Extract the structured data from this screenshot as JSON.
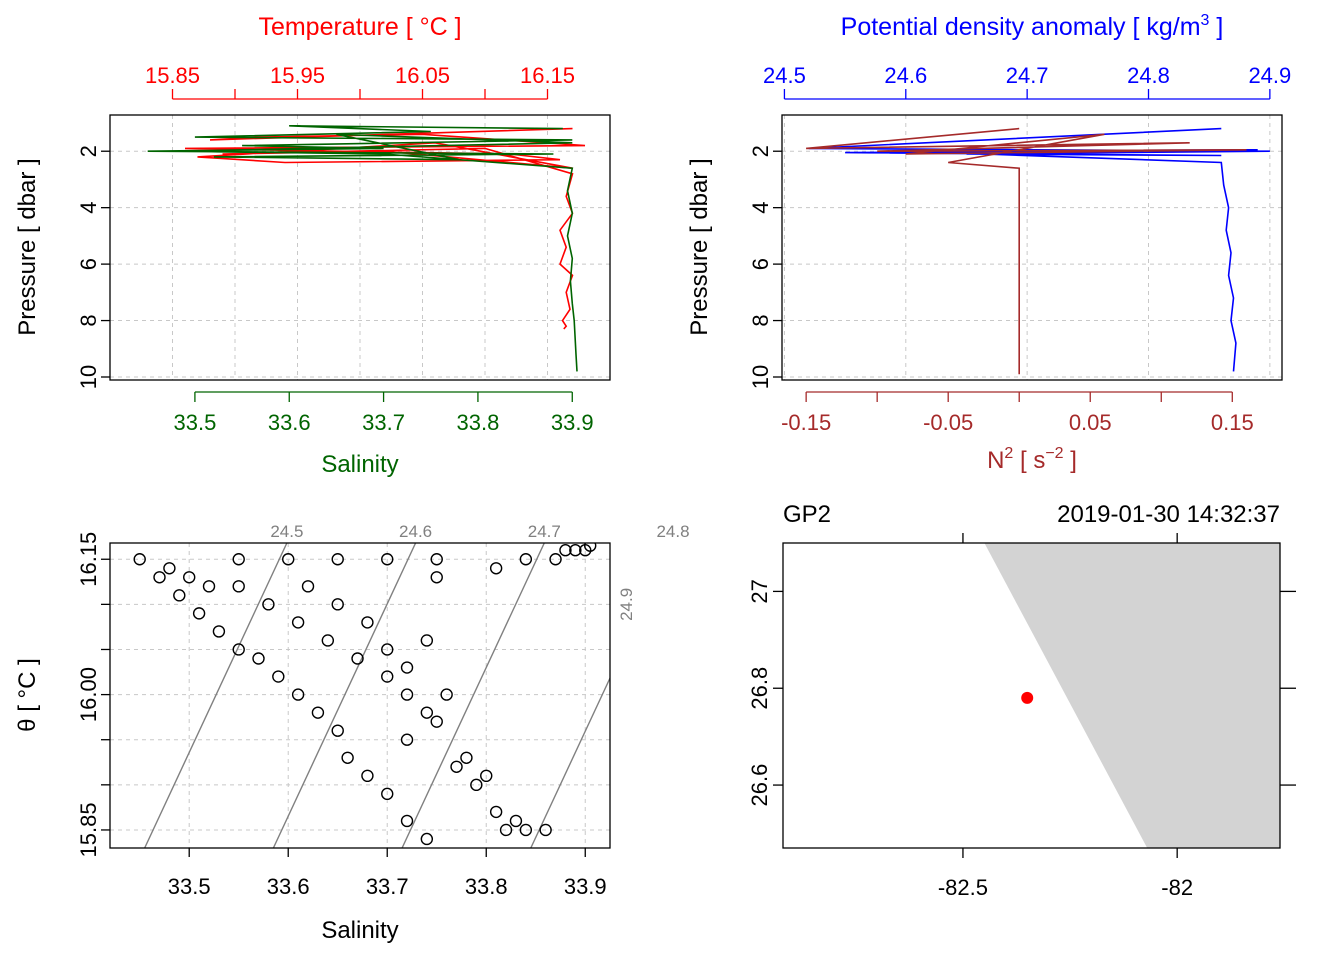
{
  "chart_data": [
    {
      "type": "line",
      "panel": "temperature-salinity-profile",
      "top_axis": {
        "label": "Temperature [ °C ]",
        "ticks": [
          "15.85",
          "15.95",
          "16.05",
          "16.15"
        ],
        "range": [
          15.8,
          16.2
        ],
        "color": "#ff0000"
      },
      "bottom_axis": {
        "label": "Salinity",
        "ticks": [
          "33.5",
          "33.6",
          "33.7",
          "33.8",
          "33.9"
        ],
        "range": [
          33.41,
          33.94
        ],
        "color": "#006400"
      },
      "ylabel": "Pressure [ dbar ]",
      "yticks": [
        "2",
        "4",
        "6",
        "8",
        "10"
      ],
      "ylim": [
        10,
        1
      ],
      "grid": true,
      "series": [
        {
          "color": "#ff0000",
          "x": [
            16.17,
            15.88,
            15.92,
            16.05,
            16.18,
            15.86,
            15.98,
            16.12,
            16.16,
            15.94,
            15.87,
            16.06,
            16.17,
            16.02,
            15.89,
            16.1,
            16.17,
            16.165,
            16.17,
            16.16,
            16.165,
            16.16,
            16.17,
            16.165,
            16.168,
            16.162,
            16.165,
            16.163
          ],
          "y": [
            1.2,
            1.6,
            1.5,
            1.4,
            1.8,
            1.9,
            2.0,
            2.1,
            2.3,
            2.4,
            2.2,
            1.7,
            2.6,
            2.0,
            2.1,
            1.9,
            2.8,
            3.6,
            4.2,
            4.8,
            5.4,
            6.0,
            6.4,
            7.0,
            7.6,
            8.0,
            8.2,
            8.3
          ]
        },
        {
          "color": "#006400",
          "x": [
            33.89,
            33.6,
            33.75,
            33.5,
            33.9,
            33.55,
            33.7,
            33.45,
            33.88,
            33.52,
            33.78,
            33.65,
            33.9,
            33.48,
            33.7,
            33.9,
            33.895,
            33.9,
            33.895,
            33.9,
            33.898,
            33.9,
            33.902,
            33.903,
            33.904,
            33.905
          ],
          "y": [
            1.2,
            1.1,
            1.3,
            1.5,
            1.6,
            1.8,
            1.9,
            2.0,
            2.1,
            2.2,
            2.3,
            1.4,
            1.7,
            2.0,
            2.1,
            2.6,
            3.4,
            4.2,
            5.0,
            5.8,
            6.6,
            7.4,
            8.0,
            8.6,
            9.2,
            9.8
          ]
        }
      ]
    },
    {
      "type": "line",
      "panel": "density-n2-profile",
      "top_axis": {
        "label": "Potential density anomaly [ kg/m",
        "label_sup": "3",
        "label_end": " ]",
        "ticks": [
          "24.5",
          "24.6",
          "24.7",
          "24.8",
          "24.9"
        ],
        "range": [
          24.498,
          24.91
        ],
        "color": "#0000ff"
      },
      "bottom_axis": {
        "label": "N",
        "label_sup": "2",
        "label_mid": " [ s",
        "label_sup2": "−2",
        "label_end": " ]",
        "ticks": [
          "-0.15",
          "-0.05",
          "0.05",
          "0.15"
        ],
        "range": [
          -0.167,
          0.185
        ],
        "color": "#a52a2a"
      },
      "ylabel": "Pressure [ dbar ]",
      "yticks": [
        "2",
        "4",
        "6",
        "8",
        "10"
      ],
      "ylim": [
        10,
        1
      ],
      "grid": true,
      "series": [
        {
          "color": "#0000ff",
          "x": [
            24.86,
            24.52,
            24.9,
            24.65,
            24.86,
            24.55,
            24.89,
            24.6,
            24.86,
            24.862,
            24.866,
            24.864,
            24.868,
            24.866,
            24.87,
            24.868,
            24.872,
            24.87
          ],
          "y": [
            1.2,
            1.9,
            2.0,
            2.1,
            2.15,
            2.05,
            1.95,
            2.0,
            2.4,
            3.2,
            4.0,
            4.8,
            5.6,
            6.4,
            7.2,
            8.0,
            8.8,
            9.8
          ]
        },
        {
          "color": "#a52a2a",
          "x": [
            0.0,
            -0.15,
            0.12,
            -0.1,
            0.16,
            -0.08,
            0.06,
            -0.05,
            0.0,
            0.0,
            0.0
          ],
          "y": [
            1.2,
            1.9,
            1.7,
            2.0,
            1.95,
            2.1,
            1.4,
            2.4,
            2.6,
            6.0,
            9.9
          ]
        }
      ]
    },
    {
      "type": "scatter",
      "panel": "ts-diagram",
      "xlabel": "Salinity",
      "ylabel": "θ [ °C ]",
      "xticks": [
        "33.5",
        "33.6",
        "33.7",
        "33.8",
        "33.9"
      ],
      "yticks": [
        "15.85",
        "16.00",
        "16.15"
      ],
      "xlim": [
        33.42,
        33.925
      ],
      "ylim": [
        15.83,
        16.168
      ],
      "isopycnal_labels": [
        "24.5",
        "24.6",
        "24.7",
        "24.8",
        "24.9"
      ],
      "grid": true,
      "points": [
        [
          33.45,
          16.15
        ],
        [
          33.48,
          16.14
        ],
        [
          33.5,
          16.13
        ],
        [
          33.52,
          16.12
        ],
        [
          33.55,
          16.15
        ],
        [
          33.6,
          16.15
        ],
        [
          33.65,
          16.15
        ],
        [
          33.7,
          16.15
        ],
        [
          33.75,
          16.15
        ],
        [
          33.47,
          16.13
        ],
        [
          33.49,
          16.11
        ],
        [
          33.51,
          16.09
        ],
        [
          33.53,
          16.07
        ],
        [
          33.55,
          16.05
        ],
        [
          33.57,
          16.04
        ],
        [
          33.59,
          16.02
        ],
        [
          33.61,
          16.0
        ],
        [
          33.63,
          15.98
        ],
        [
          33.65,
          15.96
        ],
        [
          33.55,
          16.12
        ],
        [
          33.58,
          16.1
        ],
        [
          33.61,
          16.08
        ],
        [
          33.64,
          16.06
        ],
        [
          33.67,
          16.04
        ],
        [
          33.7,
          16.02
        ],
        [
          33.72,
          16.0
        ],
        [
          33.74,
          15.98
        ],
        [
          33.62,
          16.12
        ],
        [
          33.65,
          16.1
        ],
        [
          33.68,
          16.08
        ],
        [
          33.7,
          16.05
        ],
        [
          33.72,
          16.03
        ],
        [
          33.74,
          16.06
        ],
        [
          33.76,
          16.0
        ],
        [
          33.66,
          15.93
        ],
        [
          33.68,
          15.91
        ],
        [
          33.7,
          15.89
        ],
        [
          33.72,
          15.95
        ],
        [
          33.75,
          15.97
        ],
        [
          33.77,
          15.92
        ],
        [
          33.79,
          15.9
        ],
        [
          33.81,
          15.87
        ],
        [
          33.83,
          15.86
        ],
        [
          33.82,
          15.85
        ],
        [
          33.84,
          15.85
        ],
        [
          33.86,
          15.85
        ],
        [
          33.74,
          15.84
        ],
        [
          33.72,
          15.86
        ],
        [
          33.78,
          15.93
        ],
        [
          33.8,
          15.91
        ],
        [
          33.88,
          16.16
        ],
        [
          33.89,
          16.16
        ],
        [
          33.9,
          16.16
        ],
        [
          33.905,
          16.165
        ],
        [
          33.87,
          16.15
        ],
        [
          33.84,
          16.15
        ],
        [
          33.81,
          16.14
        ],
        [
          33.75,
          16.13
        ]
      ]
    },
    {
      "type": "map",
      "panel": "station-location",
      "station": "GP2",
      "datetime": "2019-01-30 14:32:37",
      "xticks": [
        "-82.5",
        "-82"
      ],
      "yticks": [
        "26.6",
        "26.8",
        "27"
      ],
      "xlim": [
        -82.92,
        -81.76
      ],
      "ylim": [
        26.47,
        27.1
      ],
      "station_point": [
        -82.35,
        26.78
      ],
      "land_polygon": [
        [
          -82.45,
          27.1
        ],
        [
          -81.76,
          27.1
        ],
        [
          -81.76,
          26.47
        ],
        [
          -82.07,
          26.47
        ]
      ],
      "land_color": "#d3d3d3",
      "point_color": "#ff0000"
    }
  ]
}
